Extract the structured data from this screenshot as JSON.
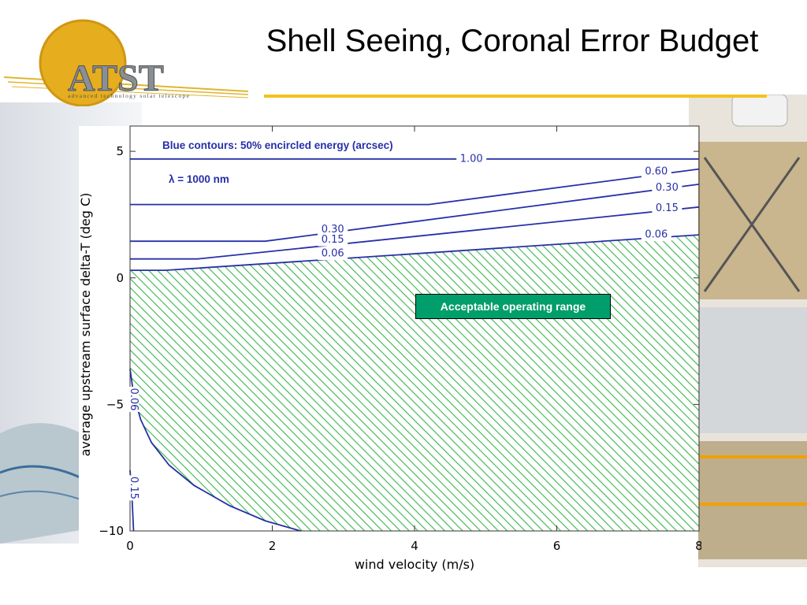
{
  "title": "Shell Seeing, Coronal Error Budget",
  "logo": {
    "name": "ATST",
    "tagline": "advanced technology solar telescope"
  },
  "colors": {
    "contour": "#2730a8",
    "hatch": "#39b54a",
    "accent": "#f4c21c",
    "range_box": "#009e6a"
  },
  "annotations": {
    "contours_note": "Blue contours: 50% encircled energy (arcsec)",
    "wavelength": "λ = 1000 nm",
    "acceptable": "Acceptable operating range"
  },
  "chart_data": {
    "type": "line",
    "title": "",
    "xlabel": "wind velocity (m/s)",
    "ylabel": "average upstream surface delta-T (deg C)",
    "xlim": [
      0,
      8
    ],
    "ylim": [
      -10,
      6
    ],
    "xticks": [
      0,
      2,
      4,
      6,
      8
    ],
    "yticks": [
      5,
      0,
      -5,
      -10
    ],
    "grid": false,
    "series": [
      {
        "name": "1.00",
        "label_pos": [
          4.8,
          4.7
        ],
        "points": [
          [
            0,
            4.7
          ],
          [
            8,
            4.7
          ]
        ]
      },
      {
        "name": "0.60",
        "label_pos": [
          7.4,
          4.2
        ],
        "points": [
          [
            0,
            2.9
          ],
          [
            4.2,
            2.9
          ],
          [
            8,
            4.3
          ]
        ]
      },
      {
        "name": "0.30",
        "label_pos": [
          2.85,
          1.9
        ],
        "points": [
          [
            0,
            1.45
          ],
          [
            1.9,
            1.45
          ],
          [
            8,
            3.7
          ]
        ]
      },
      {
        "name": "0.30",
        "label_pos": [
          7.55,
          3.55
        ],
        "points": []
      },
      {
        "name": "0.15",
        "label_pos": [
          2.85,
          1.5
        ],
        "points": [
          [
            0,
            0.75
          ],
          [
            0.95,
            0.75
          ],
          [
            8,
            2.8
          ]
        ]
      },
      {
        "name": "0.15",
        "label_pos": [
          7.55,
          2.75
        ],
        "points": []
      },
      {
        "name": "0.06",
        "label_pos": [
          2.85,
          0.95
        ],
        "points": [
          [
            0,
            0.3
          ],
          [
            0.5,
            0.3
          ],
          [
            8,
            1.7
          ]
        ]
      },
      {
        "name": "0.06",
        "label_pos": [
          7.4,
          1.7
        ],
        "points": []
      },
      {
        "name": "0.06",
        "label_pos": [
          0.05,
          -4.8
        ],
        "points": [
          [
            0.0,
            -3.6
          ],
          [
            0.05,
            -4.6
          ],
          [
            0.15,
            -5.6
          ],
          [
            0.3,
            -6.5
          ],
          [
            0.55,
            -7.4
          ],
          [
            0.9,
            -8.2
          ],
          [
            1.4,
            -9.0
          ],
          [
            1.9,
            -9.6
          ],
          [
            2.4,
            -10.0
          ]
        ]
      },
      {
        "name": "0.15",
        "label_pos": [
          0.05,
          -8.3
        ],
        "points": [
          [
            0.0,
            -7.6
          ],
          [
            0.03,
            -8.8
          ],
          [
            0.05,
            -10.0
          ]
        ]
      }
    ],
    "acceptable_region": [
      [
        0,
        0.3
      ],
      [
        0.5,
        0.3
      ],
      [
        8,
        1.7
      ],
      [
        8,
        -10
      ],
      [
        2.4,
        -10
      ],
      [
        1.9,
        -9.6
      ],
      [
        1.4,
        -9.0
      ],
      [
        0.9,
        -8.2
      ],
      [
        0.55,
        -7.4
      ],
      [
        0.3,
        -6.5
      ],
      [
        0.15,
        -5.6
      ],
      [
        0.05,
        -4.6
      ],
      [
        0,
        -3.6
      ]
    ]
  }
}
